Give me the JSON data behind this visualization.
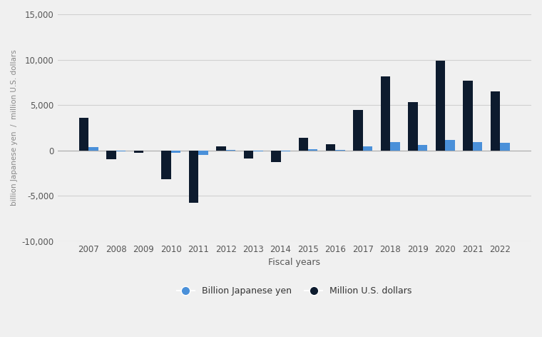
{
  "years": [
    2007,
    2008,
    2009,
    2010,
    2011,
    2012,
    2013,
    2014,
    2015,
    2016,
    2017,
    2018,
    2019,
    2020,
    2021,
    2022
  ],
  "usd_values": [
    3612,
    -980,
    -228,
    -3195,
    -5743,
    433,
    -913,
    -1260,
    1404,
    660,
    4490,
    8179,
    5363,
    9887,
    7702,
    6480
  ],
  "jpy_values": [
    369,
    -99,
    -43,
    -259,
    -457,
    43,
    -128,
    -128,
    140,
    73,
    490,
    916,
    582,
    1172,
    900,
    882
  ],
  "bar_width": 0.35,
  "usd_color": "#0d1b2e",
  "jpy_color": "#4a90d9",
  "background_color": "#f0f0f0",
  "grid_color": "#d0d0d0",
  "ylabel": "billion Japanese yen  /  million U.S. dollars",
  "xlabel": "Fiscal years",
  "ylim": [
    -10000,
    15000
  ],
  "yticks": [
    -10000,
    -5000,
    0,
    5000,
    10000,
    15000
  ],
  "ytick_labels": [
    "-10,000",
    "-5,000",
    "0",
    "5,000",
    "10,000",
    "15,000"
  ],
  "legend_label_jpy": "Billion Japanese yen",
  "legend_label_usd": "Million U.S. dollars",
  "axis_fontsize": 9,
  "tick_fontsize": 8.5,
  "legend_fontsize": 9
}
